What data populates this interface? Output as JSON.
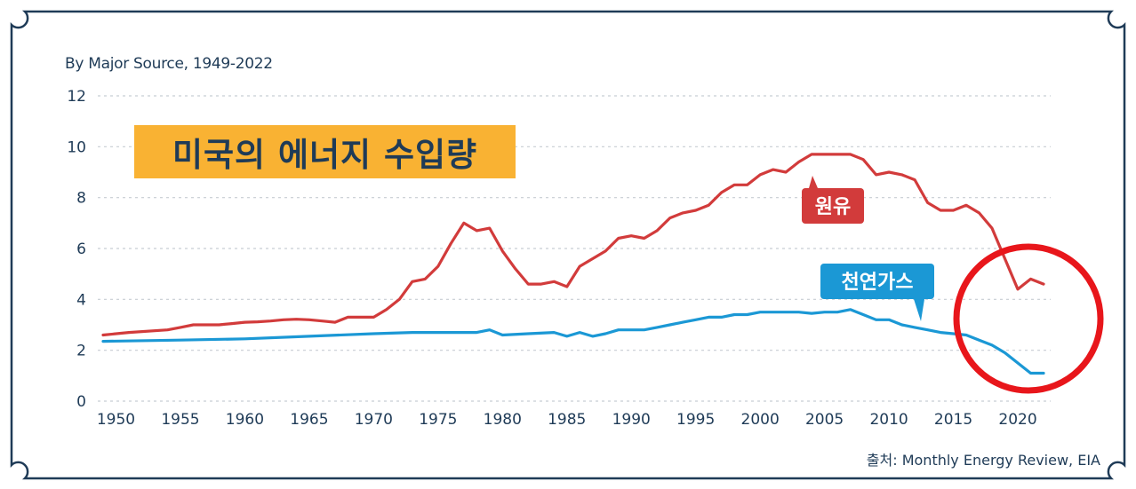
{
  "subtitle": "By Major Source, 1949-2022",
  "title": "미국의 에너지 수입량",
  "source": "출처: Monthly Energy Review, EIA",
  "colors": {
    "crude": "#d23b3b",
    "gas": "#1b98d5",
    "title_bg": "#f9b233",
    "text": "#1f3b57",
    "circle": "#e8161b",
    "frame": "#1f3b57"
  },
  "chart_data": {
    "type": "line",
    "ylim": [
      0,
      12
    ],
    "xlim": [
      1949,
      2022
    ],
    "yticks": [
      "0",
      "2",
      "4",
      "6",
      "8",
      "10",
      "12"
    ],
    "xticks": [
      "1950",
      "1955",
      "1960",
      "1965",
      "1970",
      "1975",
      "1980",
      "1985",
      "1990",
      "1995",
      "2000",
      "2005",
      "2010",
      "2015",
      "2020"
    ],
    "grid": "horizontal dashed",
    "series": [
      {
        "name": "원유",
        "color": "#d23b3b",
        "x": [
          1949,
          1951,
          1954,
          1955,
          1956,
          1957,
          1958,
          1959,
          1960,
          1961,
          1962,
          1963,
          1964,
          1965,
          1966,
          1967,
          1968,
          1969,
          1970,
          1971,
          1972,
          1973,
          1974,
          1975,
          1976,
          1977,
          1978,
          1979,
          1980,
          1981,
          1982,
          1983,
          1984,
          1985,
          1986,
          1987,
          1988,
          1989,
          1990,
          1991,
          1992,
          1993,
          1994,
          1995,
          1996,
          1997,
          1998,
          1999,
          2000,
          2001,
          2002,
          2003,
          2004,
          2005,
          2006,
          2007,
          2008,
          2009,
          2010,
          2011,
          2012,
          2013,
          2014,
          2015,
          2016,
          2017,
          2018,
          2019,
          2020,
          2021,
          2022
        ],
        "y": [
          2.6,
          2.7,
          2.8,
          2.9,
          3.0,
          3.0,
          3.0,
          3.05,
          3.1,
          3.12,
          3.15,
          3.2,
          3.22,
          3.2,
          3.15,
          3.1,
          3.3,
          3.3,
          3.3,
          3.6,
          4.0,
          4.7,
          4.8,
          5.3,
          6.2,
          7.0,
          6.7,
          6.8,
          5.9,
          5.2,
          4.6,
          4.6,
          4.7,
          4.5,
          5.3,
          5.6,
          5.9,
          6.4,
          6.5,
          6.4,
          6.7,
          7.2,
          7.4,
          7.5,
          7.7,
          8.2,
          8.5,
          8.5,
          8.9,
          9.1,
          9.0,
          9.4,
          9.7,
          9.7,
          9.7,
          9.7,
          9.5,
          8.9,
          9.0,
          8.9,
          8.7,
          7.8,
          7.5,
          7.5,
          7.7,
          7.4,
          6.8,
          5.6,
          4.4,
          4.8,
          4.6
        ]
      },
      {
        "name": "천연가스",
        "color": "#1b98d5",
        "x": [
          1949,
          1955,
          1960,
          1965,
          1970,
          1973,
          1975,
          1978,
          1979,
          1980,
          1982,
          1984,
          1985,
          1986,
          1987,
          1988,
          1989,
          1990,
          1991,
          1992,
          1993,
          1994,
          1995,
          1996,
          1997,
          1998,
          1999,
          2000,
          2001,
          2002,
          2003,
          2004,
          2005,
          2006,
          2007,
          2008,
          2009,
          2010,
          2011,
          2012,
          2013,
          2014,
          2015,
          2016,
          2017,
          2018,
          2019,
          2020,
          2021,
          2022
        ],
        "y": [
          2.35,
          2.4,
          2.45,
          2.55,
          2.65,
          2.7,
          2.7,
          2.7,
          2.8,
          2.6,
          2.65,
          2.7,
          2.55,
          2.7,
          2.55,
          2.65,
          2.8,
          2.8,
          2.8,
          2.9,
          3.0,
          3.1,
          3.2,
          3.3,
          3.3,
          3.4,
          3.4,
          3.5,
          3.5,
          3.5,
          3.5,
          3.45,
          3.5,
          3.5,
          3.6,
          3.4,
          3.2,
          3.2,
          3.0,
          2.9,
          2.8,
          2.7,
          2.65,
          2.6,
          2.4,
          2.2,
          1.9,
          1.5,
          1.1,
          1.1
        ]
      }
    ],
    "annotations": [
      "원유",
      "천연가스"
    ]
  }
}
